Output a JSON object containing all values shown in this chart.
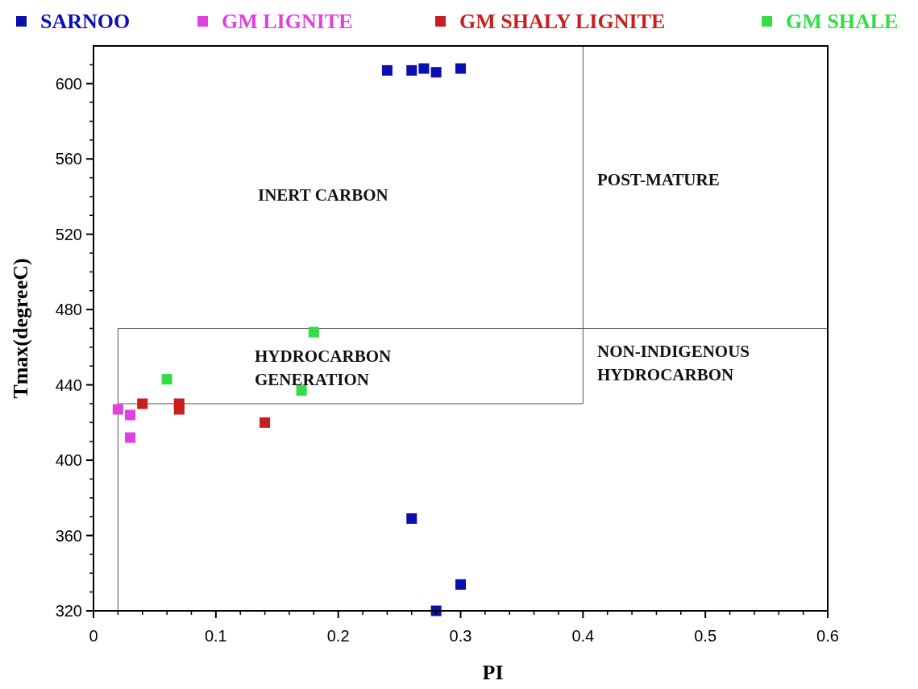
{
  "chart_data": {
    "type": "scatter",
    "xlabel": "PI",
    "ylabel": "Tmax(degreeC)",
    "xlim": [
      0,
      0.6
    ],
    "ylim": [
      320,
      620
    ],
    "xticks": [
      0,
      {
        "value": 0.1,
        "label": "0.1"
      },
      {
        "value": 0.2,
        "label": "0.2"
      },
      {
        "value": 0.3,
        "label": "0.3"
      },
      {
        "value": 0.4,
        "label": "0.4"
      },
      {
        "value": 0.5,
        "label": "0.5"
      },
      {
        "value": 0.6,
        "label": "0.6"
      }
    ],
    "yticks": [
      320,
      360,
      400,
      440,
      480,
      520,
      560,
      600
    ],
    "marker": "square",
    "legend": "top",
    "grid": false,
    "series": [
      {
        "name": "SARNOO",
        "color": "#0a10b0",
        "x": [
          0.24,
          0.26,
          0.27,
          0.28,
          0.3,
          0.26,
          0.3,
          0.28
        ],
        "values": [
          607,
          607,
          608,
          606,
          608,
          369,
          334,
          320
        ]
      },
      {
        "name": "GM LIGNITE",
        "color": "#e040e0",
        "x": [
          0.02,
          0.03,
          0.03
        ],
        "values": [
          427,
          424,
          412
        ]
      },
      {
        "name": "GM SHALY LIGNITE",
        "color": "#c81e1e",
        "x": [
          0.04,
          0.07,
          0.07,
          0.14
        ],
        "values": [
          430,
          430,
          427,
          420
        ]
      },
      {
        "name": "GM SHALE",
        "color": "#33dd44",
        "x": [
          0.06,
          0.17,
          0.18
        ],
        "values": [
          443,
          437,
          468
        ]
      }
    ],
    "ref_lines": [
      {
        "axis": "x",
        "value": 0.02
      },
      {
        "axis": "x",
        "value": 0.4
      },
      {
        "axis": "y",
        "value": 470
      },
      {
        "axis": "y",
        "value": 430
      }
    ],
    "annotations": [
      "INERT CARBON",
      "POST-MATURE",
      "HYDROCARBON\nGENERATION",
      "NON-INDIGENOUS\nHYDROCARBON"
    ]
  }
}
